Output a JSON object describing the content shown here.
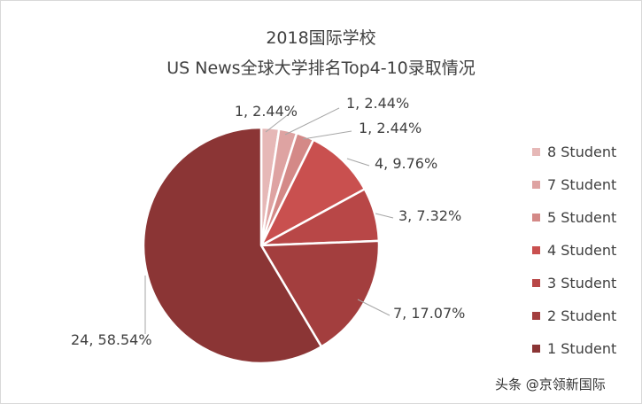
{
  "chart_data": {
    "type": "pie",
    "title": "2018国际学校",
    "subtitle": "US News全球大学排名Top4-10录取情况",
    "legend_position": "right",
    "slices": [
      {
        "name": "8 Student",
        "value": 1,
        "percent_label": "1, 2.44%",
        "color": "#e6b8b7"
      },
      {
        "name": "7 Student",
        "value": 1,
        "percent_label": "1, 2.44%",
        "color": "#dea3a2"
      },
      {
        "name": "5 Student",
        "value": 1,
        "percent_label": "1, 2.44%",
        "color": "#d48987"
      },
      {
        "name": "4 Student",
        "value": 4,
        "percent_label": "4, 9.76%",
        "color": "#c9504f"
      },
      {
        "name": "3 Student",
        "value": 3,
        "percent_label": "3, 7.32%",
        "color": "#b84747"
      },
      {
        "name": "2 Student",
        "value": 7,
        "percent_label": "7, 17.07%",
        "color": "#a33e3e"
      },
      {
        "name": "1 Student",
        "value": 24,
        "percent_label": "24, 58.54%",
        "color": "#8b3535"
      }
    ],
    "legend_order": [
      "8 Student",
      "7 Student",
      "5 Student",
      "4 Student",
      "3 Student",
      "2 Student",
      "1 Student"
    ]
  },
  "watermark": "头条 @京领新国际"
}
